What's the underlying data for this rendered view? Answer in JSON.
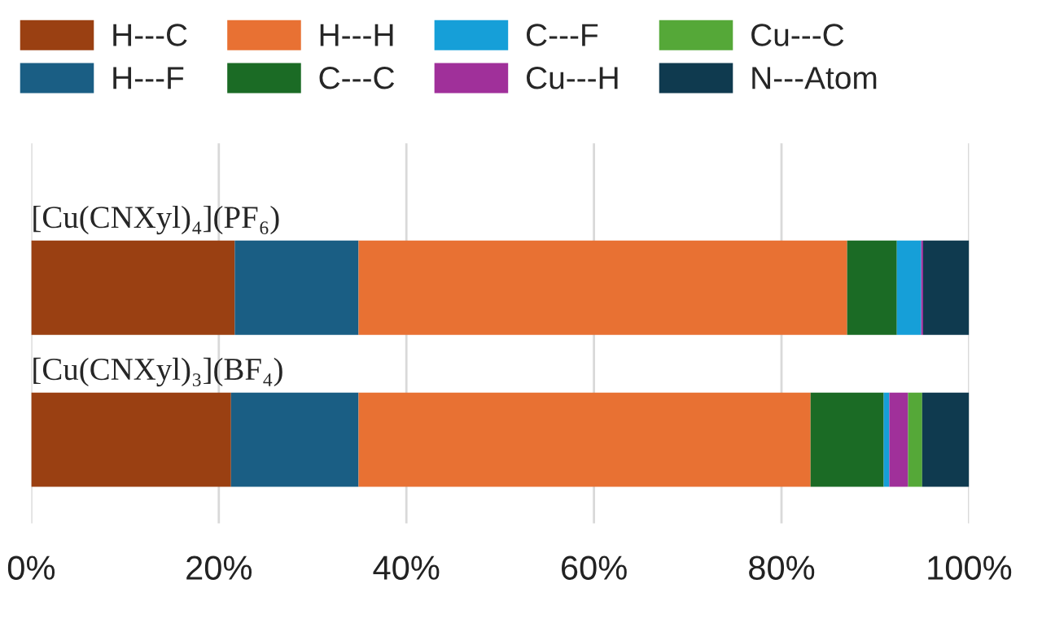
{
  "chart_data": {
    "type": "bar",
    "orientation": "horizontal",
    "stacked": true,
    "categories": [
      "[Cu(CNXyl)₄](PF₆)",
      "[Cu(CNXyl)₃](BF₄)"
    ],
    "series": [
      {
        "name": "H---C",
        "color": "#9a4012",
        "values": [
          21.7,
          21.3
        ]
      },
      {
        "name": "H---F",
        "color": "#1a5e84",
        "values": [
          13.2,
          13.6
        ]
      },
      {
        "name": "H---H",
        "color": "#e87133",
        "values": [
          52.1,
          48.2
        ]
      },
      {
        "name": "C---C",
        "color": "#1b6b25",
        "values": [
          5.3,
          7.8
        ]
      },
      {
        "name": "C---F",
        "color": "#169fd8",
        "values": [
          2.6,
          0.6
        ]
      },
      {
        "name": "Cu---H",
        "color": "#a0309a",
        "values": [
          0.2,
          2.0
        ]
      },
      {
        "name": "Cu---C",
        "color": "#55a838",
        "values": [
          0,
          1.5
        ]
      },
      {
        "name": "N---Atom",
        "color": "#0f3a4f",
        "values": [
          4.9,
          5.0
        ]
      }
    ],
    "xlim": [
      0,
      100
    ],
    "xticks": [
      {
        "value": 0,
        "label": "0%"
      },
      {
        "value": 20,
        "label": "20%"
      },
      {
        "value": 40,
        "label": "40%"
      },
      {
        "value": 60,
        "label": "60%"
      },
      {
        "value": 80,
        "label": "80%"
      },
      {
        "value": 100,
        "label": "100%"
      }
    ],
    "grid": "x",
    "legend": "top"
  }
}
